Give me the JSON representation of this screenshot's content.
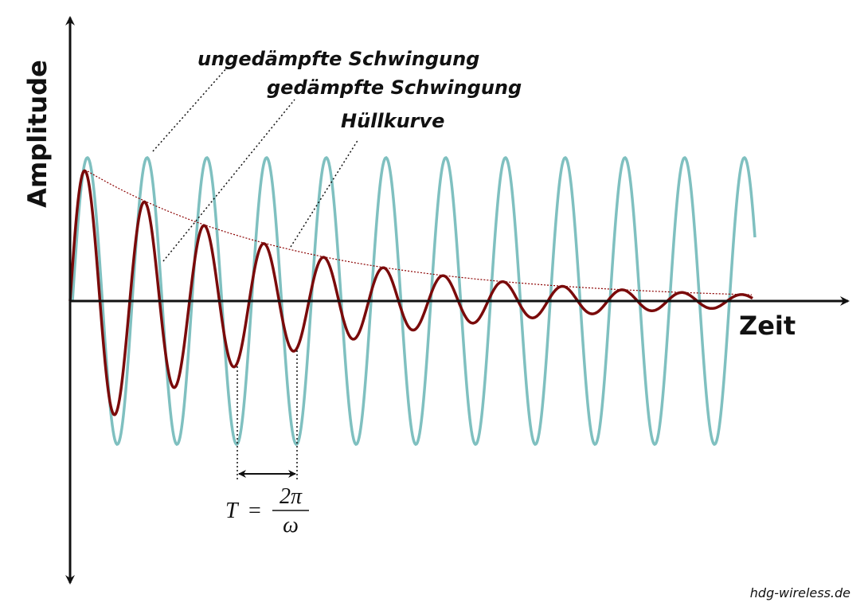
{
  "labels": {
    "undamped": "ungedämpfte Schwingung",
    "damped": "gedämpfte Schwingung",
    "envelope": "Hüllkurve"
  },
  "axes": {
    "y": "Amplitude",
    "x": "Zeit"
  },
  "formula": {
    "lhs": "T",
    "eq": "=",
    "numerator": "2π",
    "denominator": "ω"
  },
  "credit": "hdg-wireless.de"
}
